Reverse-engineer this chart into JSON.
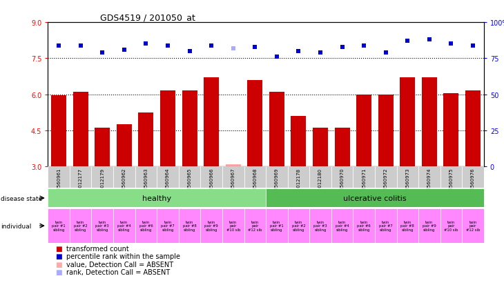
{
  "title": "GDS4519 / 201050_at",
  "samples": [
    "GSM560961",
    "GSM1012177",
    "GSM1012179",
    "GSM560962",
    "GSM560963",
    "GSM560964",
    "GSM560965",
    "GSM560966",
    "GSM560967",
    "GSM560968",
    "GSM560969",
    "GSM1012178",
    "GSM1012180",
    "GSM560970",
    "GSM560971",
    "GSM560972",
    "GSM560973",
    "GSM560974",
    "GSM560975",
    "GSM560976"
  ],
  "bar_values": [
    5.97,
    6.1,
    4.6,
    4.75,
    5.25,
    6.15,
    6.15,
    6.7,
    3.1,
    6.6,
    6.1,
    5.1,
    4.6,
    4.6,
    6.0,
    6.0,
    6.7,
    6.7,
    6.05,
    6.15
  ],
  "bar_absent": [
    false,
    false,
    false,
    false,
    false,
    false,
    false,
    false,
    true,
    false,
    false,
    false,
    false,
    false,
    false,
    false,
    false,
    false,
    false,
    false
  ],
  "rank_values": [
    84,
    84,
    79,
    81,
    85,
    84,
    80,
    84,
    82,
    83,
    76,
    80,
    79,
    83,
    84,
    79,
    87,
    88,
    85,
    84
  ],
  "rank_absent": [
    false,
    false,
    false,
    false,
    false,
    false,
    false,
    false,
    true,
    false,
    false,
    false,
    false,
    false,
    false,
    false,
    false,
    false,
    false,
    false
  ],
  "ylim_left": [
    3,
    9
  ],
  "ylim_right": [
    0,
    100
  ],
  "yticks_left": [
    3,
    4.5,
    6,
    7.5,
    9
  ],
  "yticks_right": [
    0,
    25,
    50,
    75,
    100
  ],
  "hlines": [
    4.5,
    6.0,
    7.5
  ],
  "disease_labels": [
    "healthy",
    "ulcerative colitis"
  ],
  "healthy_range": [
    0,
    10
  ],
  "uc_range": [
    10,
    20
  ],
  "individuals": [
    "twin\npair #1\nsibling",
    "twin\npair #2\nsibling",
    "twin\npair #3\nsibling",
    "twin\npair #4\nsibling",
    "twin\npair #6\nsibling",
    "twin\npair #7\nsibling",
    "twin\npair #8\nsibling",
    "twin\npair #9\nsibling",
    "twin\npair\n#10 sib",
    "twin\npair\n#12 sib",
    "twin\npair #1\nsibling",
    "twin\npair #2\nsibling",
    "twin\npair #3\nsibling",
    "twin\npair #4\nsibling",
    "twin\npair #6\nsibling",
    "twin\npair #7\nsibling",
    "twin\npair #8\nsibling",
    "twin\npair #9\nsibling",
    "twin\npair\n#10 sib",
    "twin\npair\n#12 sib"
  ],
  "bar_color_normal": "#cc0000",
  "bar_color_absent": "#ffaaaa",
  "rank_color_normal": "#0000cc",
  "rank_color_absent": "#aaaaff",
  "healthy_color": "#88dd88",
  "uc_color": "#55bb55",
  "individual_color": "#ff88ff",
  "sample_bg_color": "#cccccc",
  "legend_items": [
    {
      "color": "#cc0000",
      "label": "transformed count"
    },
    {
      "color": "#0000cc",
      "label": "percentile rank within the sample"
    },
    {
      "color": "#ffaaaa",
      "label": "value, Detection Call = ABSENT"
    },
    {
      "color": "#aaaaff",
      "label": "rank, Detection Call = ABSENT"
    }
  ]
}
